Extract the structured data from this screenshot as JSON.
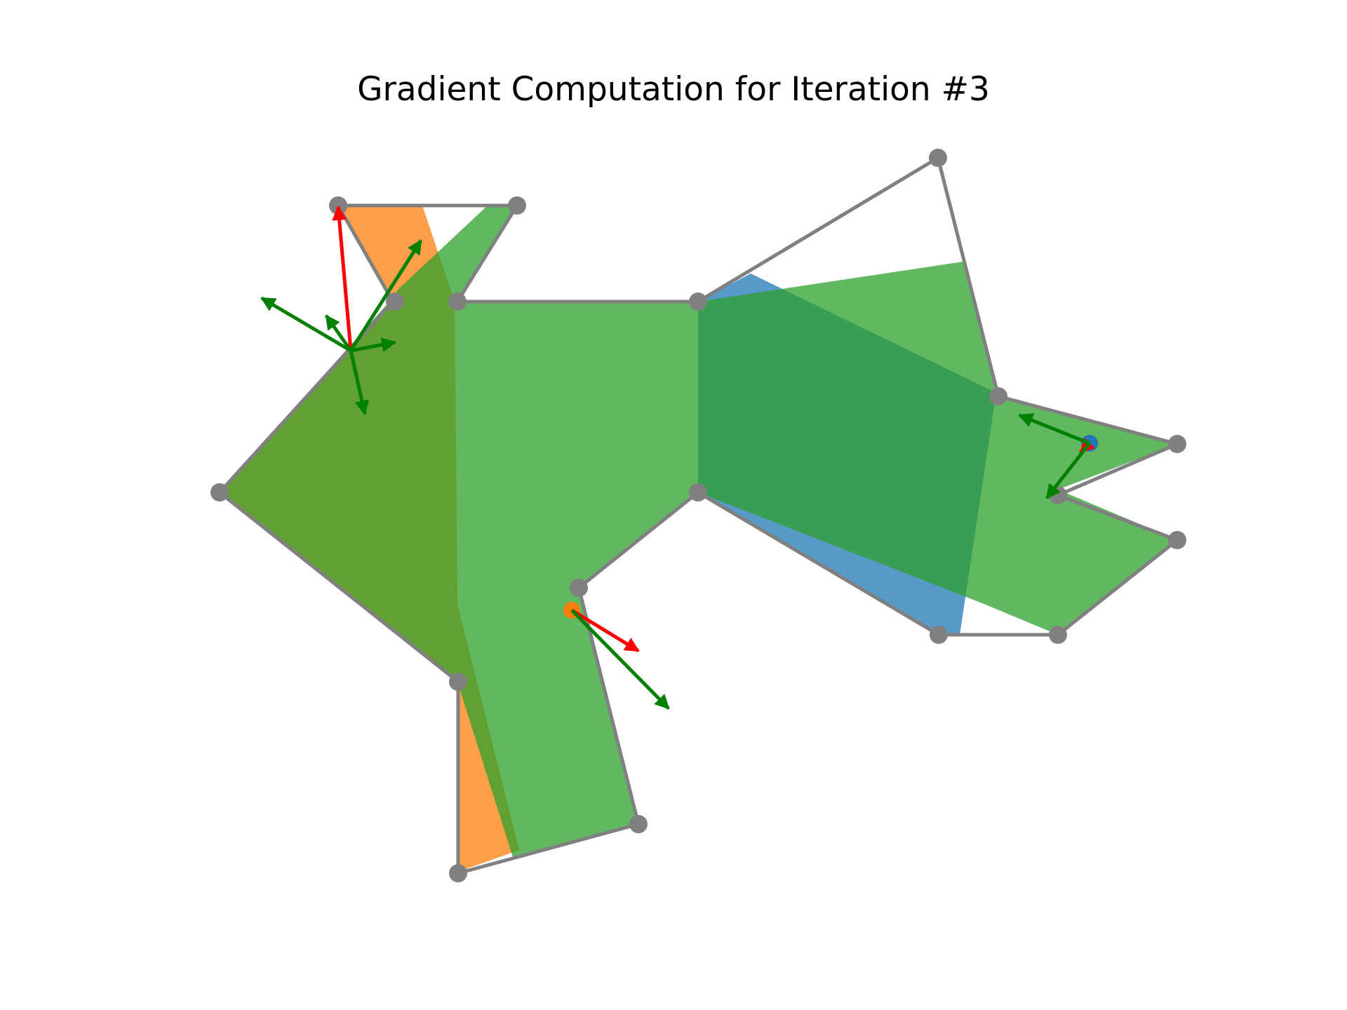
{
  "figure": {
    "title": "Gradient Computation for Iteration #3"
  },
  "colors": {
    "outline": "#808080",
    "fill_green": "#2ca02c",
    "fill_orange": "#ff7f0e",
    "fill_blue": "#1f77b4",
    "gradient_red": "#ff0000",
    "component_green": "#008000"
  }
}
